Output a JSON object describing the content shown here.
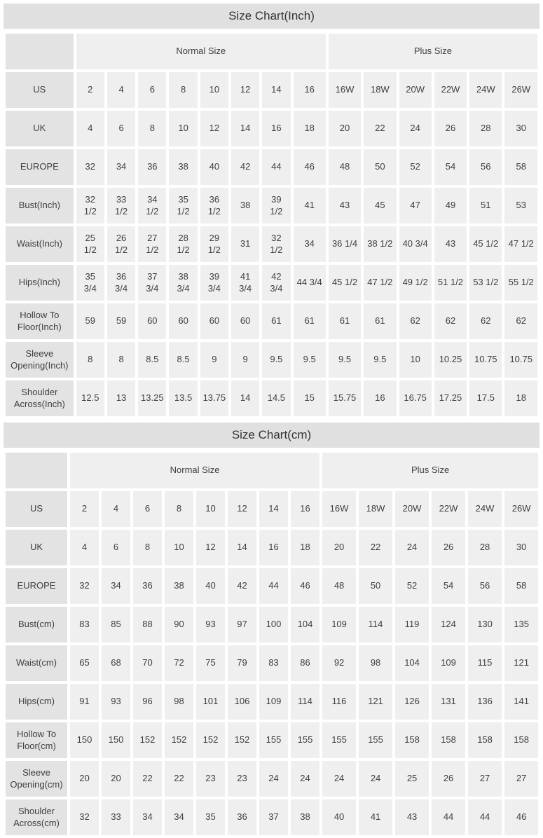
{
  "colors": {
    "title_bar_bg": "#e1e0e0",
    "label_cell_bg": "#e4e3e3",
    "data_cell_bg": "#f0efef",
    "text": "#3f3f3f"
  },
  "tables": [
    {
      "title": "Size Chart(Inch)",
      "group_headers": [
        {
          "label": "Normal Size",
          "span": 8
        },
        {
          "label": "Plus Size",
          "span": 6
        }
      ],
      "rows": [
        {
          "label": "US",
          "values": [
            "2",
            "4",
            "6",
            "8",
            "10",
            "12",
            "14",
            "16",
            "16W",
            "18W",
            "20W",
            "22W",
            "24W",
            "26W"
          ]
        },
        {
          "label": "UK",
          "values": [
            "4",
            "6",
            "8",
            "10",
            "12",
            "14",
            "16",
            "18",
            "20",
            "22",
            "24",
            "26",
            "28",
            "30"
          ]
        },
        {
          "label": "EUROPE",
          "values": [
            "32",
            "34",
            "36",
            "38",
            "40",
            "42",
            "44",
            "46",
            "48",
            "50",
            "52",
            "54",
            "56",
            "58"
          ]
        },
        {
          "label": "Bust(Inch)",
          "values": [
            "32 1/2",
            "33 1/2",
            "34 1/2",
            "35 1/2",
            "36 1/2",
            "38",
            "39 1/2",
            "41",
            "43",
            "45",
            "47",
            "49",
            "51",
            "53"
          ]
        },
        {
          "label": "Waist(Inch)",
          "values": [
            "25 1/2",
            "26 1/2",
            "27 1/2",
            "28 1/2",
            "29 1/2",
            "31",
            "32 1/2",
            "34",
            "36 1/4",
            "38 1/2",
            "40 3/4",
            "43",
            "45 1/2",
            "47 1/2"
          ]
        },
        {
          "label": "Hips(Inch)",
          "values": [
            "35 3/4",
            "36 3/4",
            "37 3/4",
            "38 3/4",
            "39 3/4",
            "41 3/4",
            "42 3/4",
            "44 3/4",
            "45 1/2",
            "47 1/2",
            "49 1/2",
            "51 1/2",
            "53 1/2",
            "55 1/2"
          ]
        },
        {
          "label": "Hollow To Floor(Inch)",
          "values": [
            "59",
            "59",
            "60",
            "60",
            "60",
            "60",
            "61",
            "61",
            "61",
            "61",
            "62",
            "62",
            "62",
            "62"
          ]
        },
        {
          "label": "Sleeve Opening(Inch)",
          "values": [
            "8",
            "8",
            "8.5",
            "8.5",
            "9",
            "9",
            "9.5",
            "9.5",
            "9.5",
            "9.5",
            "10",
            "10.25",
            "10.75",
            "10.75"
          ]
        },
        {
          "label": "Shoulder Across(Inch)",
          "values": [
            "12.5",
            "13",
            "13.25",
            "13.5",
            "13.75",
            "14",
            "14.5",
            "15",
            "15.75",
            "16",
            "16.75",
            "17.25",
            "17.5",
            "18"
          ]
        }
      ]
    },
    {
      "title": "Size Chart(cm)",
      "group_headers": [
        {
          "label": "Normal Size",
          "span": 8
        },
        {
          "label": "Plus Size",
          "span": 6
        }
      ],
      "rows": [
        {
          "label": "US",
          "values": [
            "2",
            "4",
            "6",
            "8",
            "10",
            "12",
            "14",
            "16",
            "16W",
            "18W",
            "20W",
            "22W",
            "24W",
            "26W"
          ]
        },
        {
          "label": "UK",
          "values": [
            "4",
            "6",
            "8",
            "10",
            "12",
            "14",
            "16",
            "18",
            "20",
            "22",
            "24",
            "26",
            "28",
            "30"
          ]
        },
        {
          "label": "EUROPE",
          "values": [
            "32",
            "34",
            "36",
            "38",
            "40",
            "42",
            "44",
            "46",
            "48",
            "50",
            "52",
            "54",
            "56",
            "58"
          ]
        },
        {
          "label": "Bust(cm)",
          "values": [
            "83",
            "85",
            "88",
            "90",
            "93",
            "97",
            "100",
            "104",
            "109",
            "114",
            "119",
            "124",
            "130",
            "135"
          ]
        },
        {
          "label": "Waist(cm)",
          "values": [
            "65",
            "68",
            "70",
            "72",
            "75",
            "79",
            "83",
            "86",
            "92",
            "98",
            "104",
            "109",
            "115",
            "121"
          ]
        },
        {
          "label": "Hips(cm)",
          "values": [
            "91",
            "93",
            "96",
            "98",
            "101",
            "106",
            "109",
            "114",
            "116",
            "121",
            "126",
            "131",
            "136",
            "141"
          ]
        },
        {
          "label": "Hollow To Floor(cm)",
          "values": [
            "150",
            "150",
            "152",
            "152",
            "152",
            "152",
            "155",
            "155",
            "155",
            "155",
            "158",
            "158",
            "158",
            "158"
          ]
        },
        {
          "label": "Sleeve Opening(cm)",
          "values": [
            "20",
            "20",
            "22",
            "22",
            "23",
            "23",
            "24",
            "24",
            "24",
            "24",
            "25",
            "26",
            "27",
            "27"
          ]
        },
        {
          "label": "Shoulder Across(cm)",
          "values": [
            "32",
            "33",
            "34",
            "34",
            "35",
            "36",
            "37",
            "38",
            "40",
            "41",
            "43",
            "44",
            "44",
            "46"
          ]
        }
      ]
    }
  ]
}
